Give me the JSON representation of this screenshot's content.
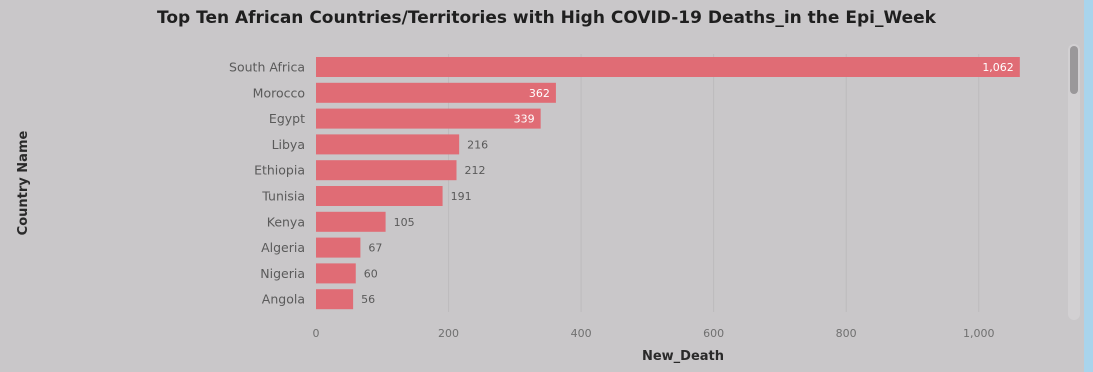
{
  "chart_data": {
    "type": "bar",
    "orientation": "horizontal",
    "title": "Top Ten African Countries/Territories with High COVID-19 Deaths_in the Epi_Week",
    "xlabel": "New_Death",
    "ylabel": "Country Name",
    "categories": [
      "South Africa",
      "Morocco",
      "Egypt",
      "Libya",
      "Ethiopia",
      "Tunisia",
      "Kenya",
      "Algeria",
      "Nigeria",
      "Angola"
    ],
    "values": [
      1062,
      362,
      339,
      216,
      212,
      191,
      105,
      67,
      60,
      56
    ],
    "value_labels": [
      "1,062",
      "362",
      "339",
      "216",
      "212",
      "191",
      "105",
      "67",
      "60",
      "56"
    ],
    "xlim": [
      0,
      1100
    ],
    "xticks": [
      0,
      200,
      400,
      600,
      800,
      1000
    ],
    "xtick_labels": [
      "0",
      "200",
      "400",
      "600",
      "800",
      "1,000"
    ],
    "bar_color": "#e06c75",
    "grid": true
  }
}
